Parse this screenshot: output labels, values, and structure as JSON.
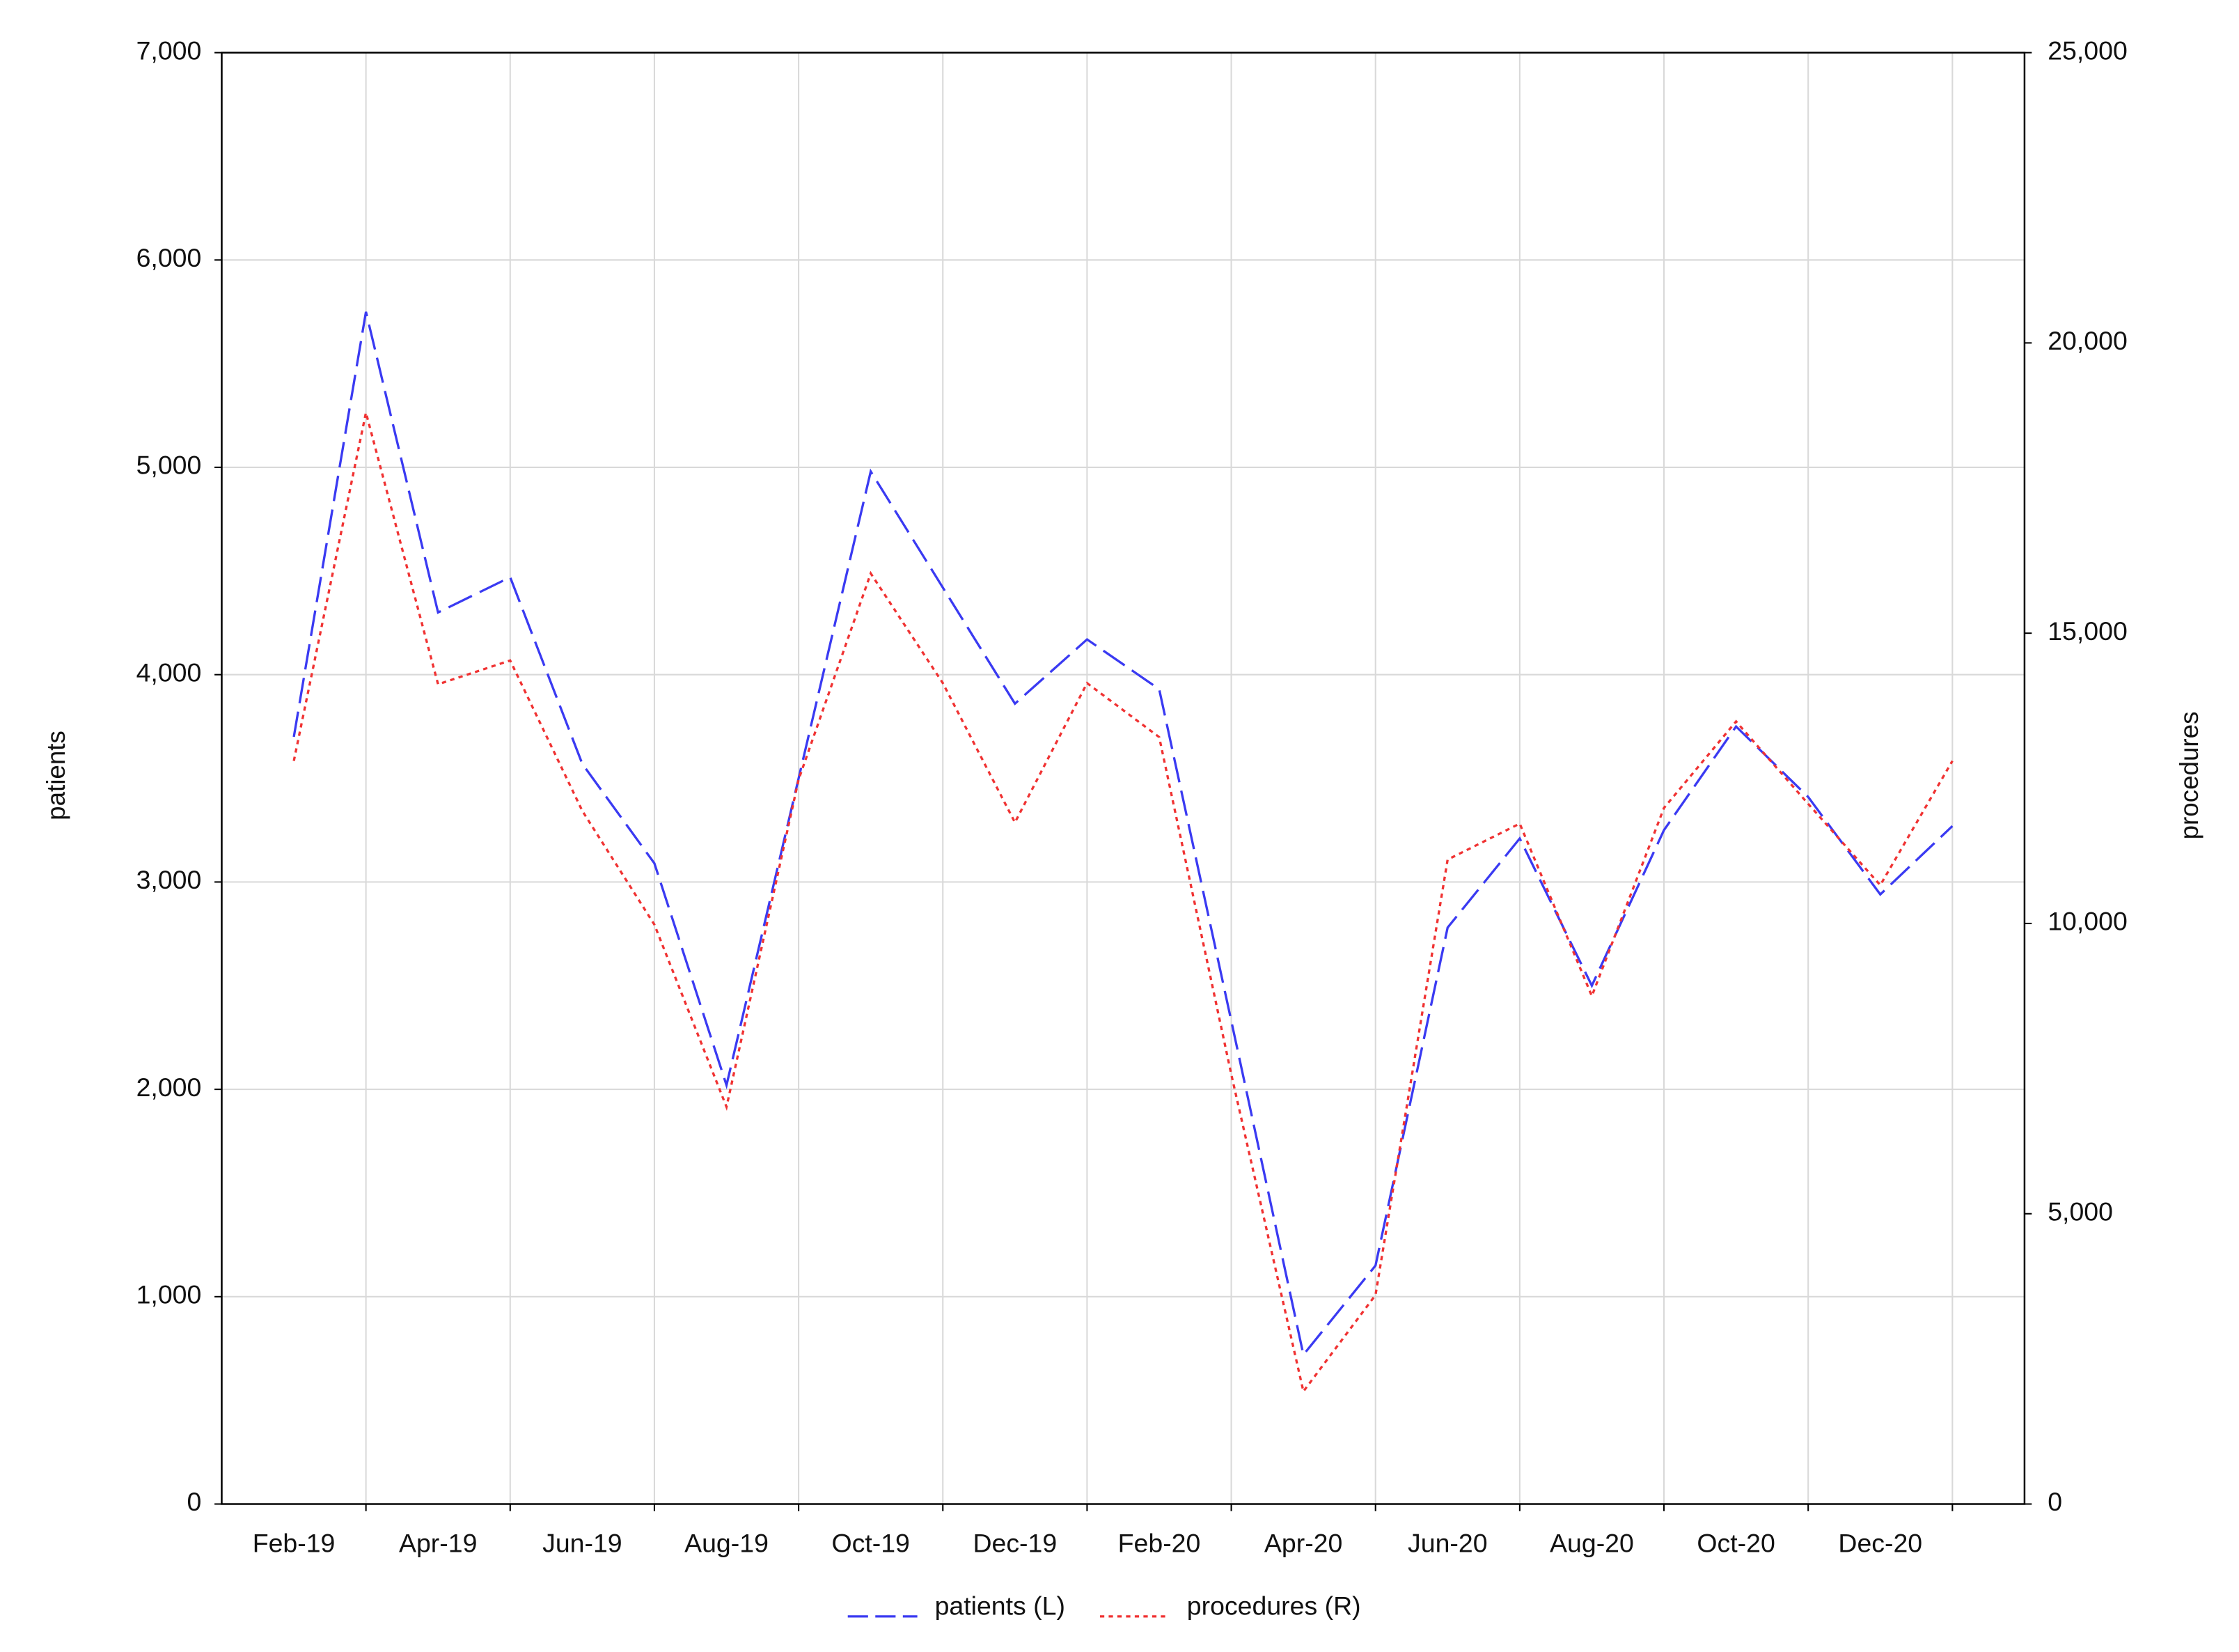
{
  "chart_data": {
    "type": "line",
    "categories": [
      "Feb-19",
      null,
      "Apr-19",
      null,
      "Jun-19",
      null,
      "Aug-19",
      null,
      "Oct-19",
      null,
      "Dec-19",
      null,
      "Feb-20",
      null,
      "Apr-20",
      null,
      "Jun-20",
      null,
      "Aug-20",
      null,
      "Oct-20",
      null,
      "Dec-20",
      null
    ],
    "y_label": "patients",
    "y2_label": "procedures",
    "ylim": [
      0,
      7000
    ],
    "yticks": [
      0,
      {
        "value": 1000,
        "label": "1,000"
      },
      {
        "value": 2000,
        "label": "2,000"
      },
      {
        "value": 3000,
        "label": "3,000"
      },
      {
        "value": 4000,
        "label": "4,000"
      },
      {
        "value": 5000,
        "label": "5,000"
      },
      {
        "value": 6000,
        "label": "6,000"
      },
      {
        "value": 7000,
        "label": "7,000"
      }
    ],
    "y2lim": [
      0,
      25000
    ],
    "y2ticks": [
      0,
      {
        "value": 5000,
        "label": "5,000"
      },
      {
        "value": 10000,
        "label": "10,000"
      },
      {
        "value": 15000,
        "label": "15,000"
      },
      {
        "value": 20000,
        "label": "20,000"
      },
      {
        "value": 25000,
        "label": "25,000"
      }
    ],
    "grid": true,
    "legend": "bottom",
    "series": [
      {
        "name": "patients (L)",
        "color": "#3a3af2",
        "style": "dashed",
        "values": [
          3700,
          5750,
          4300,
          4470,
          3570,
          3090,
          2020,
          3500,
          4980,
          4420,
          3860,
          4170,
          3930,
          2330,
          720,
          1150,
          2780,
          3210,
          2500,
          3250,
          3750,
          3410,
          2940,
          3270
        ]
      },
      {
        "name": "procedures (R)",
        "color": "#f03232",
        "style": "dotted",
        "axis": "y2",
        "values": [
          12800,
          18800,
          14120,
          14530,
          11940,
          9980,
          6840,
          12480,
          16030,
          14140,
          11740,
          14140,
          13210,
          7400,
          1940,
          3600,
          11100,
          11720,
          8750,
          11990,
          13480,
          12060,
          10660,
          12800
        ]
      }
    ]
  }
}
